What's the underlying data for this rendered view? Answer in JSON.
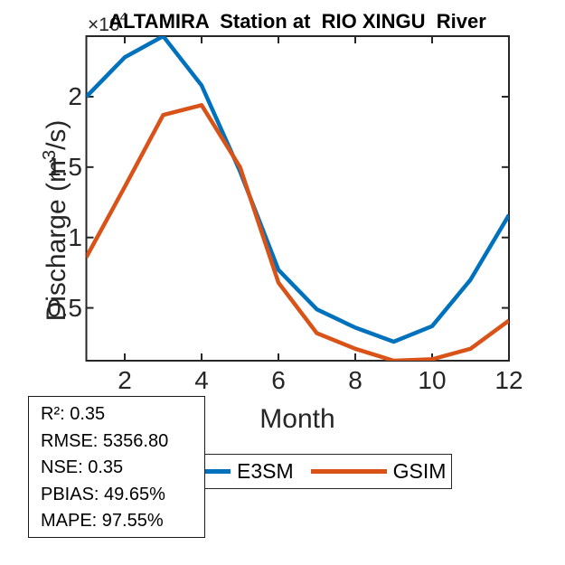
{
  "figure": {
    "title": "ALTAMIRA  Station at  RIO XINGU  River",
    "y_multiplier_base": "×10",
    "y_multiplier_exp": "4",
    "xlabel": "Month",
    "ylabel": {
      "prefix": "Discharge (m",
      "sup": "3",
      "suffix": "/s)"
    },
    "axis_color": "#262626",
    "background_color": "#FFFFFF"
  },
  "chart_data": {
    "type": "line",
    "title": "ALTAMIRA  Station at  RIO XINGU  River",
    "xlabel": "Month",
    "ylabel": "Discharge (m^3/s)",
    "y_units": "×10^4 m^3/s",
    "x": [
      1,
      2,
      3,
      4,
      5,
      6,
      7,
      8,
      9,
      10,
      11,
      12
    ],
    "series": [
      {
        "name": "E3SM",
        "color": "#0072BD",
        "values": [
          2.0,
          2.28,
          2.43,
          2.08,
          1.47,
          0.77,
          0.49,
          0.36,
          0.26,
          0.37,
          0.7,
          1.16
        ]
      },
      {
        "name": "GSIM",
        "color": "#D95319",
        "values": [
          0.86,
          1.36,
          1.87,
          1.94,
          1.5,
          0.68,
          0.32,
          0.21,
          0.125,
          0.135,
          0.21,
          0.41
        ]
      }
    ],
    "xticks": [
      2,
      4,
      6,
      8,
      10,
      12
    ],
    "yticks": [
      0.5,
      1.0,
      1.5,
      2.0
    ],
    "ytick_labels": [
      "0.5",
      "1",
      "1.5",
      "2"
    ],
    "xlim": [
      1,
      12
    ],
    "ylim": [
      0.125,
      2.43
    ],
    "grid": false,
    "box": true,
    "legend_position": "below-axes-horizontal"
  },
  "legend": {
    "entries": [
      {
        "label": "E3SM",
        "color": "#0072BD"
      },
      {
        "label": "GSIM",
        "color": "#D95319"
      }
    ]
  },
  "stats": {
    "lines": [
      "R²: 0.35",
      "RMSE: 5356.80",
      "NSE: 0.35",
      "PBIAS: 49.65%",
      "MAPE: 97.55%"
    ]
  }
}
